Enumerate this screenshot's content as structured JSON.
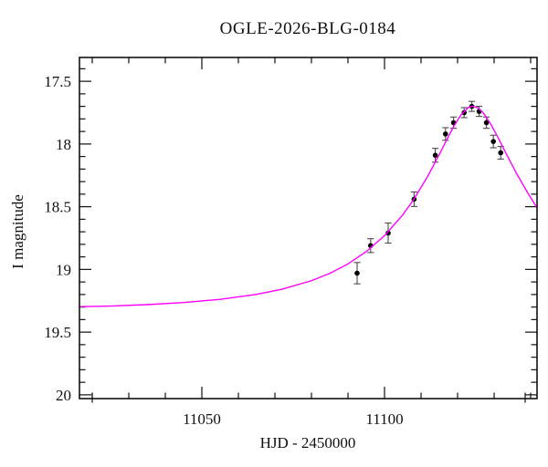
{
  "page": {
    "background": "#ffffff",
    "frame_color": "#111111",
    "text_color": "#111111"
  },
  "chart_data": {
    "type": "line",
    "title": "OGLE-2026-BLG-0184",
    "xlabel": "HJD - 2450000",
    "ylabel": "I magnitude",
    "grid": false,
    "legend_position": "none",
    "x_axis": {
      "lim": [
        11016.5,
        11141.75
      ],
      "major_ticks": [
        11050,
        11100
      ],
      "major_labels": [
        "11050",
        "11100"
      ],
      "minor_start": 11020,
      "minor_end": 11140,
      "minor_step": 10
    },
    "y_axis": {
      "lim": [
        17.31,
        20.03
      ],
      "inverted_magnitude_axis": true,
      "major_ticks": [
        17.5,
        18.0,
        18.5,
        19.0,
        19.5,
        20.0
      ],
      "major_labels": [
        "17.5",
        "18",
        "18.5",
        "19",
        "19.5",
        "20"
      ],
      "minor_start": 17.4,
      "minor_end": 20.0,
      "minor_step": 0.1
    },
    "series": [
      {
        "name": "microlensing-model-curve",
        "kind": "line",
        "color": "#ff00ff",
        "points": [
          [
            11016.5,
            19.297
          ],
          [
            11025,
            19.292
          ],
          [
            11035,
            19.281
          ],
          [
            11045,
            19.264
          ],
          [
            11055,
            19.239
          ],
          [
            11065,
            19.199
          ],
          [
            11072,
            19.158
          ],
          [
            11080,
            19.09
          ],
          [
            11085,
            19.032
          ],
          [
            11090,
            18.956
          ],
          [
            11095,
            18.858
          ],
          [
            11100,
            18.731
          ],
          [
            11105,
            18.565
          ],
          [
            11108,
            18.442
          ],
          [
            11112,
            18.249
          ],
          [
            11115,
            18.083
          ],
          [
            11117,
            17.968
          ],
          [
            11119,
            17.857
          ],
          [
            11121,
            17.765
          ],
          [
            11123,
            17.708
          ],
          [
            11124.2,
            17.699
          ],
          [
            11125.5,
            17.71
          ],
          [
            11127,
            17.75
          ],
          [
            11129,
            17.837
          ],
          [
            11131,
            17.945
          ],
          [
            11133,
            18.06
          ],
          [
            11136,
            18.228
          ],
          [
            11139,
            18.379
          ],
          [
            11141.75,
            18.51
          ]
        ]
      },
      {
        "name": "ogle-i-band-observations",
        "kind": "scatter-errorbar",
        "marker": "filled-circle",
        "color": "#000000",
        "error_color": "#4a4a4a",
        "points": [
          {
            "t": 11092.5,
            "mag": 19.03,
            "err": 0.085
          },
          {
            "t": 11096.2,
            "mag": 18.81,
            "err": 0.055
          },
          {
            "t": 11101.0,
            "mag": 18.71,
            "err": 0.08
          },
          {
            "t": 11108.1,
            "mag": 18.44,
            "err": 0.058
          },
          {
            "t": 11113.9,
            "mag": 18.09,
            "err": 0.055
          },
          {
            "t": 11116.7,
            "mag": 17.92,
            "err": 0.05
          },
          {
            "t": 11118.9,
            "mag": 17.83,
            "err": 0.045
          },
          {
            "t": 11121.8,
            "mag": 17.75,
            "err": 0.04
          },
          {
            "t": 11123.9,
            "mag": 17.7,
            "err": 0.04
          },
          {
            "t": 11125.9,
            "mag": 17.74,
            "err": 0.04
          },
          {
            "t": 11127.9,
            "mag": 17.83,
            "err": 0.045
          },
          {
            "t": 11129.8,
            "mag": 17.98,
            "err": 0.05
          },
          {
            "t": 11131.8,
            "mag": 18.07,
            "err": 0.05
          }
        ]
      }
    ]
  }
}
